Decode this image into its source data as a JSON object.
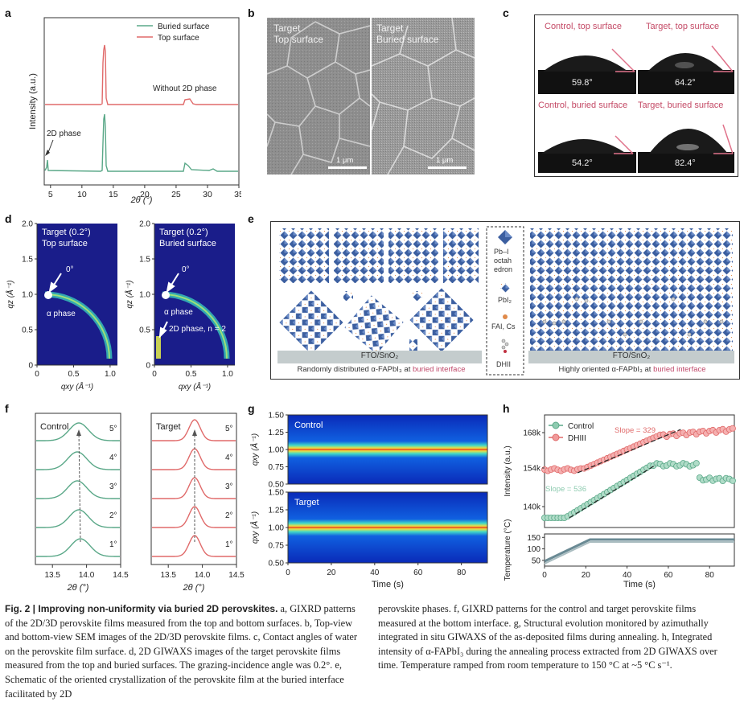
{
  "panel_labels": {
    "a": "a",
    "b": "b",
    "c": "c",
    "d": "d",
    "e": "e",
    "f": "f",
    "g": "g",
    "h": "h"
  },
  "colors": {
    "green": "#5aa888",
    "red": "#e06a6a",
    "pink_text": "#c0486a",
    "blue_bg": "#1a1d8a"
  },
  "panel_a": {
    "ylabel": "Intensity (a.u.)",
    "xlabel": "2θ (°)",
    "legend": [
      "Buried surface",
      "Top surface"
    ],
    "annot_top": "Without 2D phase",
    "annot_bottom": "2D phase",
    "xticks": [
      "5",
      "10",
      "15",
      "20",
      "25",
      "30",
      "35"
    ]
  },
  "panel_b": {
    "left_title_1": "Target",
    "left_title_2": "Top surface",
    "right_title_1": "Target",
    "right_title_2": "Buried surface",
    "scale": "1 μm"
  },
  "panel_c": {
    "t1": "Control, top surface",
    "t2": "Target, top surface",
    "t3": "Control, buried surface",
    "t4": "Target, buried surface",
    "v1": "59.8°",
    "v2": "64.2°",
    "v3": "54.2°",
    "v4": "82.4°"
  },
  "panel_d": {
    "left_title_1": "Target (0.2°)",
    "left_title_2": "Top surface",
    "right_title_1": "Target (0.2°)",
    "right_title_2": "Buried surface",
    "zero": "0°",
    "alpha": "α phase",
    "twod": "2D phase, n = 2",
    "ylabel": "qz (Å⁻¹)",
    "xlabel": "qxy (Å⁻¹)",
    "yticks": [
      "0",
      "0.5",
      "1.0",
      "1.5",
      "2.0"
    ],
    "xticks": [
      "0",
      "0.5",
      "1.0"
    ]
  },
  "panel_e": {
    "legend_1": "Pb–I",
    "legend_2": "octah",
    "legend_3": "edron",
    "legend_4": "PbI₂",
    "legend_5": "FAI, Cs",
    "legend_6": "DHII",
    "substrate": "FTO/SnO₂",
    "left_cap_a": "Randomly distributed α-FAPbI₃ at ",
    "left_cap_b": "buried interface",
    "right_cap_a": "Highly oriented α-FAPbI₃ at ",
    "right_cap_b": "buried interface"
  },
  "panel_f": {
    "left_title": "Control",
    "right_title": "Target",
    "angles": [
      "5°",
      "4°",
      "3°",
      "2°",
      "1°"
    ],
    "xticks": [
      "13.5",
      "14.0",
      "14.5"
    ],
    "xlabel": "2θ (°)"
  },
  "panel_g": {
    "top_title": "Control",
    "bottom_title": "Target",
    "yticks": [
      "0.50",
      "0.75",
      "1.00",
      "1.25",
      "1.50"
    ],
    "xticks": [
      "0",
      "20",
      "40",
      "60",
      "80"
    ],
    "ylabel": "qxy (Å⁻¹)",
    "xlabel": "Time (s)"
  },
  "panel_h": {
    "legend": [
      "Control",
      "DHIII"
    ],
    "slope_red": "Slope = 329",
    "slope_green": "Slope = 536",
    "yticks_top": [
      "140k",
      "154k",
      "168k"
    ],
    "yticks_bottom": [
      "50",
      "100",
      "150"
    ],
    "xticks": [
      "0",
      "20",
      "40",
      "60",
      "80"
    ],
    "ylabel_top": "Intensity (a.u.)",
    "ylabel_bottom": "Temperature (°C)",
    "xlabel": "Time (s)"
  },
  "caption": {
    "fig": "Fig. 2 | Improving non-uniformity via buried 2D perovskites.",
    "left": " a, GIXRD patterns of the 2D/3D perovskite films measured from the top and bottom surfaces. b, Top-view and bottom-view SEM images of the 2D/3D perovskite films. c, Contact angles of water on the perovskite film surface. d, 2D GIWAXS images of the target perovskite films measured from the top and buried surfaces. The grazing-incidence angle was 0.2°. e, Schematic of the oriented crystallization of the perovskite film at the buried interface facilitated by 2D",
    "right": "perovskite phases. f, GIXRD patterns for the control and target perovskite films measured at the bottom interface. g, Structural evolution monitored by azimuthally integrated in situ GIWAXS of the as-deposited films during annealing. h, Integrated intensity of α-FAPbI₃ during the annealing process extracted from 2D GIWAXS over time. Temperature ramped from room temperature to 150 °C at ~5 °C s⁻¹."
  }
}
